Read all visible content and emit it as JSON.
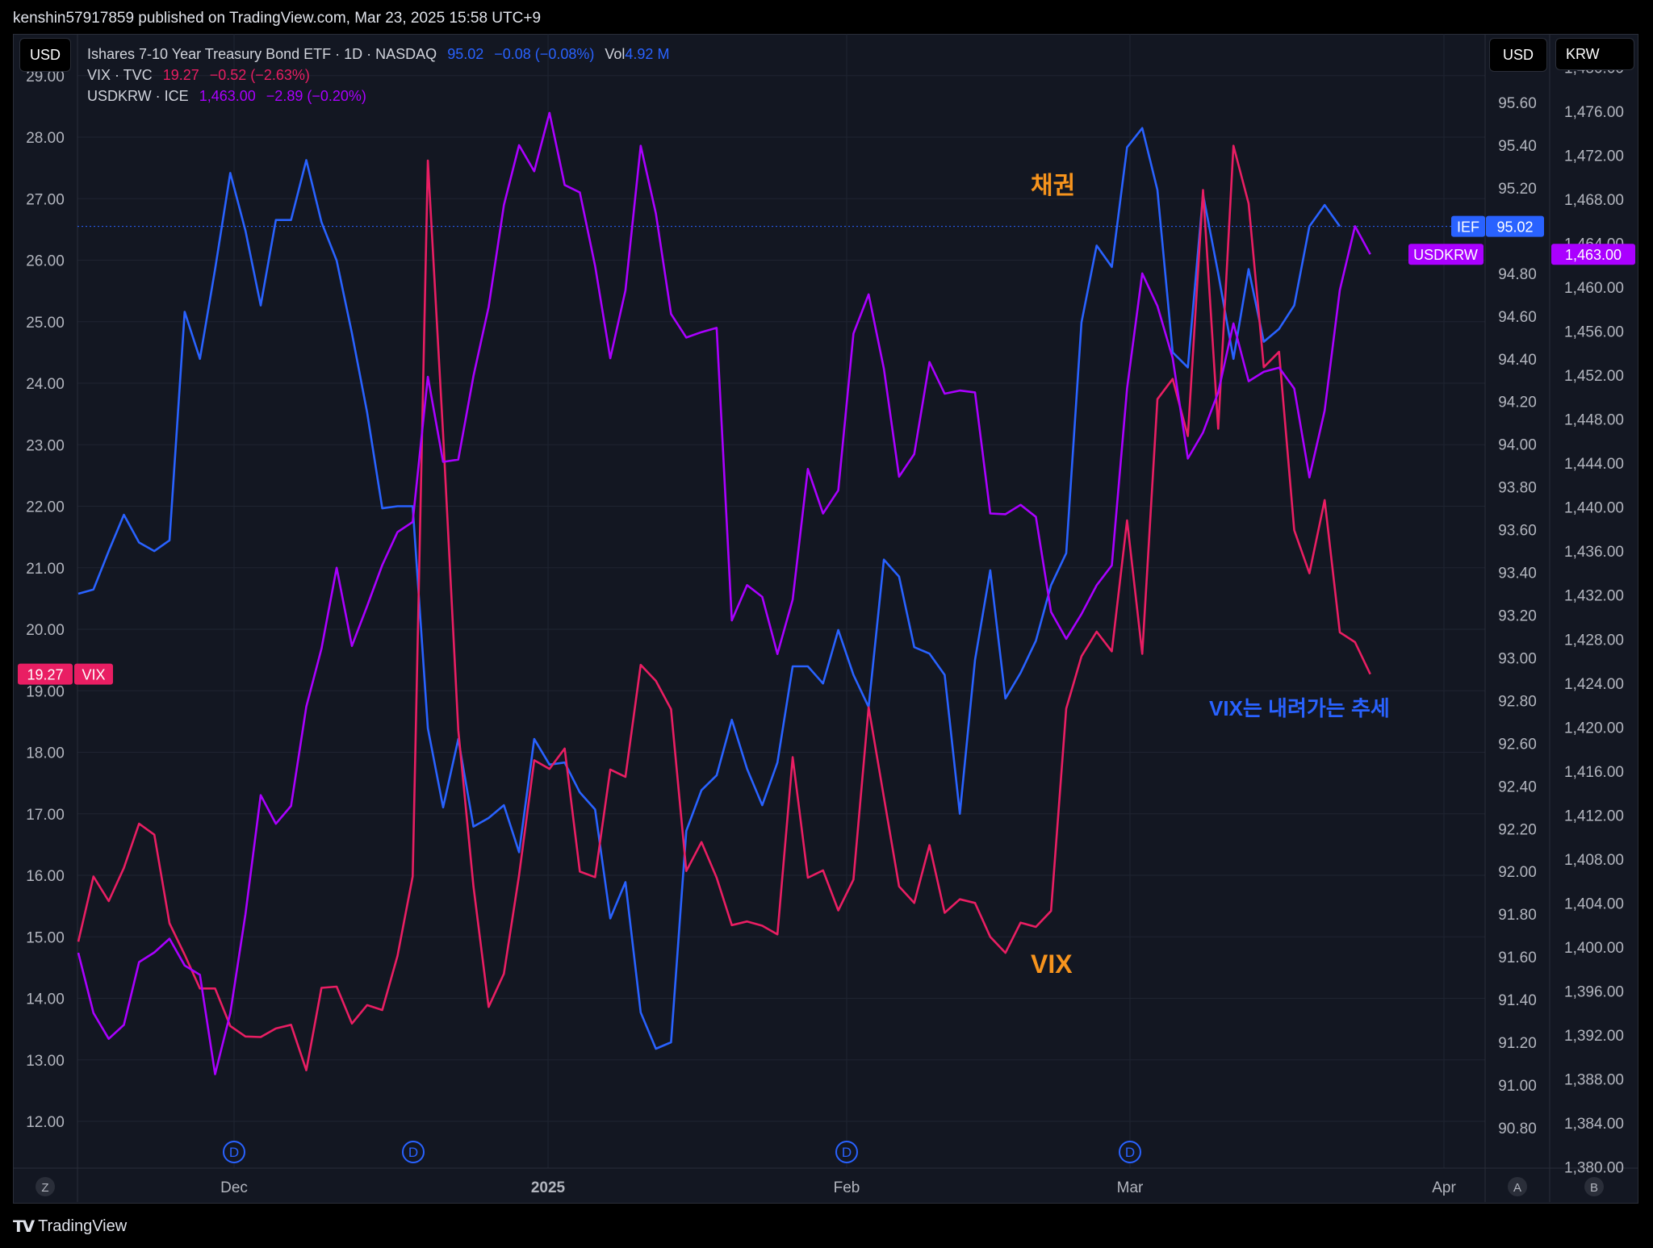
{
  "header": {
    "publisher": "kenshin57917859 published on TradingView.com, Mar 23, 2025 15:58 UTC+9"
  },
  "unit_boxes": {
    "left": "USD",
    "right1": "USD",
    "right2": "KRW"
  },
  "legend": [
    {
      "name": "Ishares 7-10 Year Treasury Bond ETF · 1D · NASDAQ",
      "price": "95.02",
      "change": "−0.08 (−0.08%)",
      "vol_label": "Vol",
      "vol_value": "4.92 M",
      "color": "#2962ff"
    },
    {
      "name": "VIX · TVC",
      "price": "19.27",
      "change": "−0.52 (−2.63%)",
      "color": "#e91e63"
    },
    {
      "name": "USDKRW · ICE",
      "price": "1,463.00",
      "change": "−2.89 (−0.20%)",
      "color": "#aa00ff"
    }
  ],
  "footer": {
    "brand": "TradingView"
  },
  "bottom_buttons": {
    "left": "Z",
    "right1": "A",
    "right2": "B"
  },
  "chart_data": {
    "type": "line",
    "x_ticks": [
      "Dec",
      "2025",
      "Feb",
      "Mar",
      "Apr"
    ],
    "dividend_markers": [
      "D",
      "D",
      "D",
      "D"
    ],
    "axes": {
      "left": {
        "ticks": [
          "29.00",
          "28.00",
          "27.00",
          "26.00",
          "25.00",
          "24.00",
          "23.00",
          "22.00",
          "21.00",
          "20.00",
          "19.00",
          "18.00",
          "17.00",
          "16.00",
          "15.00",
          "14.00",
          "13.00",
          "12.00"
        ],
        "range": [
          11.5,
          29.0
        ]
      },
      "right1": {
        "ticks": [
          "95.60",
          "95.40",
          "95.20",
          "95.00",
          "94.80",
          "94.60",
          "94.40",
          "94.20",
          "94.00",
          "93.80",
          "93.60",
          "93.40",
          "93.20",
          "93.00",
          "92.80",
          "92.60",
          "92.40",
          "92.20",
          "92.00",
          "91.80",
          "91.60",
          "91.40",
          "91.20",
          "91.00",
          "90.80"
        ],
        "range": [
          90.8,
          95.6
        ]
      },
      "right2": {
        "ticks": [
          "1,480.00",
          "1,476.00",
          "1,472.00",
          "1,468.00",
          "1,464.00",
          "1,460.00",
          "1,456.00",
          "1,452.00",
          "1,448.00",
          "1,444.00",
          "1,440.00",
          "1,436.00",
          "1,432.00",
          "1,428.00",
          "1,424.00",
          "1,420.00",
          "1,416.00",
          "1,412.00",
          "1,408.00",
          "1,404.00",
          "1,400.00",
          "1,396.00",
          "1,392.00",
          "1,388.00",
          "1,384.00",
          "1,380.00"
        ],
        "range": [
          1380,
          1480
        ]
      }
    },
    "series": [
      {
        "name": "IEF",
        "axis": "right1",
        "color": "#2962ff",
        "last_label": "95.02",
        "values": [
          93.3,
          93.32,
          93.5,
          93.67,
          93.54,
          93.5,
          93.55,
          94.62,
          94.4,
          94.82,
          95.27,
          95,
          94.65,
          95.05,
          95.05,
          95.33,
          95.04,
          94.86,
          94.52,
          94.15,
          93.7,
          93.71,
          93.71,
          92.67,
          92.3,
          92.62,
          92.21,
          92.25,
          92.31,
          92.09,
          92.62,
          92.5,
          92.51,
          92.37,
          92.29,
          91.78,
          91.95,
          91.34,
          91.17,
          91.2,
          92.19,
          92.38,
          92.45,
          92.71,
          92.48,
          92.31,
          92.51,
          92.96,
          92.96,
          92.88,
          93.13,
          92.92,
          92.77,
          93.46,
          93.38,
          93.05,
          93.02,
          92.92,
          92.27,
          92.99,
          93.41,
          92.81,
          92.93,
          93.08,
          93.34,
          93.49,
          94.57,
          94.93,
          94.83,
          95.39,
          95.48,
          95.19,
          94.43,
          94.36,
          95.17,
          94.8,
          94.4,
          94.82,
          94.48,
          94.54,
          94.65,
          95.02,
          95.12,
          95.02
        ]
      },
      {
        "name": "VIX",
        "axis": "left",
        "color": "#e91e63",
        "last_label": "19.27",
        "values": [
          14.92,
          15.98,
          15.58,
          16.12,
          16.84,
          16.66,
          15.22,
          14.71,
          14.16,
          14.16,
          13.55,
          13.38,
          13.37,
          13.51,
          13.57,
          12.83,
          14.17,
          14.19,
          13.59,
          13.89,
          13.81,
          14.69,
          15.98,
          27.62,
          23.17,
          18.36,
          15.82,
          13.86,
          14.4,
          16.0,
          17.87,
          17.73,
          18.06,
          16.06,
          15.97,
          17.72,
          17.6,
          19.42,
          19.16,
          18.7,
          16.07,
          16.54,
          15.96,
          15.19,
          15.25,
          15.18,
          15.04,
          17.92,
          15.96,
          16.08,
          15.43,
          15.93,
          18.73,
          17.27,
          15.82,
          15.55,
          16.49,
          15.39,
          15.61,
          15.55,
          15.0,
          14.74,
          15.23,
          15.16,
          15.42,
          18.71,
          19.56,
          19.96,
          19.64,
          21.77,
          19.6,
          23.74,
          24.07,
          23.14,
          27.14,
          23.26,
          27.86,
          26.92,
          24.26,
          24.51,
          21.61,
          20.91,
          22.1,
          19.95,
          19.79,
          19.27
        ]
      },
      {
        "name": "USDKRW",
        "axis": "right2",
        "color": "#aa00ff",
        "last_label": "1,463.00",
        "values": [
          1399.47,
          1394.0,
          1391.65,
          1392.92,
          1398.63,
          1399.51,
          1400.76,
          1398.32,
          1397.47,
          1388.43,
          1393.98,
          1402.98,
          1413.81,
          1411.21,
          1412.83,
          1421.86,
          1427.13,
          1434.49,
          1427.38,
          1430.99,
          1434.73,
          1437.73,
          1438.66,
          1451.86,
          1444.12,
          1444.33,
          1451.93,
          1458.21,
          1467.47,
          1472.92,
          1470.55,
          1475.86,
          1469.3,
          1468.62,
          1461.94,
          1453.54,
          1459.71,
          1472.87,
          1466.71,
          1457.57,
          1455.43,
          1455.92,
          1456.31,
          1429.7,
          1432.91,
          1431.84,
          1426.65,
          1431.6,
          1443.48,
          1439.43,
          1441.53,
          1455.79,
          1459.35,
          1452.59,
          1442.77,
          1444.83,
          1453.2,
          1450.32,
          1450.61,
          1450.44,
          1439.43,
          1439.36,
          1440.21,
          1439.12,
          1430.48,
          1428.03,
          1430.28,
          1432.9,
          1434.71,
          1450.8,
          1461.26,
          1458.3,
          1453.56,
          1444.42,
          1446.79,
          1450.43,
          1456.71,
          1451.45,
          1452.31,
          1452.69,
          1450.79,
          1442.71,
          1448.79,
          1459.75,
          1465.55,
          1463.0
        ]
      }
    ],
    "annotations": [
      {
        "text": "채권",
        "color": "#f7941d"
      },
      {
        "text": "VIX는 내려가는 추세",
        "color": "#2962ff"
      },
      {
        "text": "VIX",
        "color": "#f7941d"
      }
    ]
  }
}
